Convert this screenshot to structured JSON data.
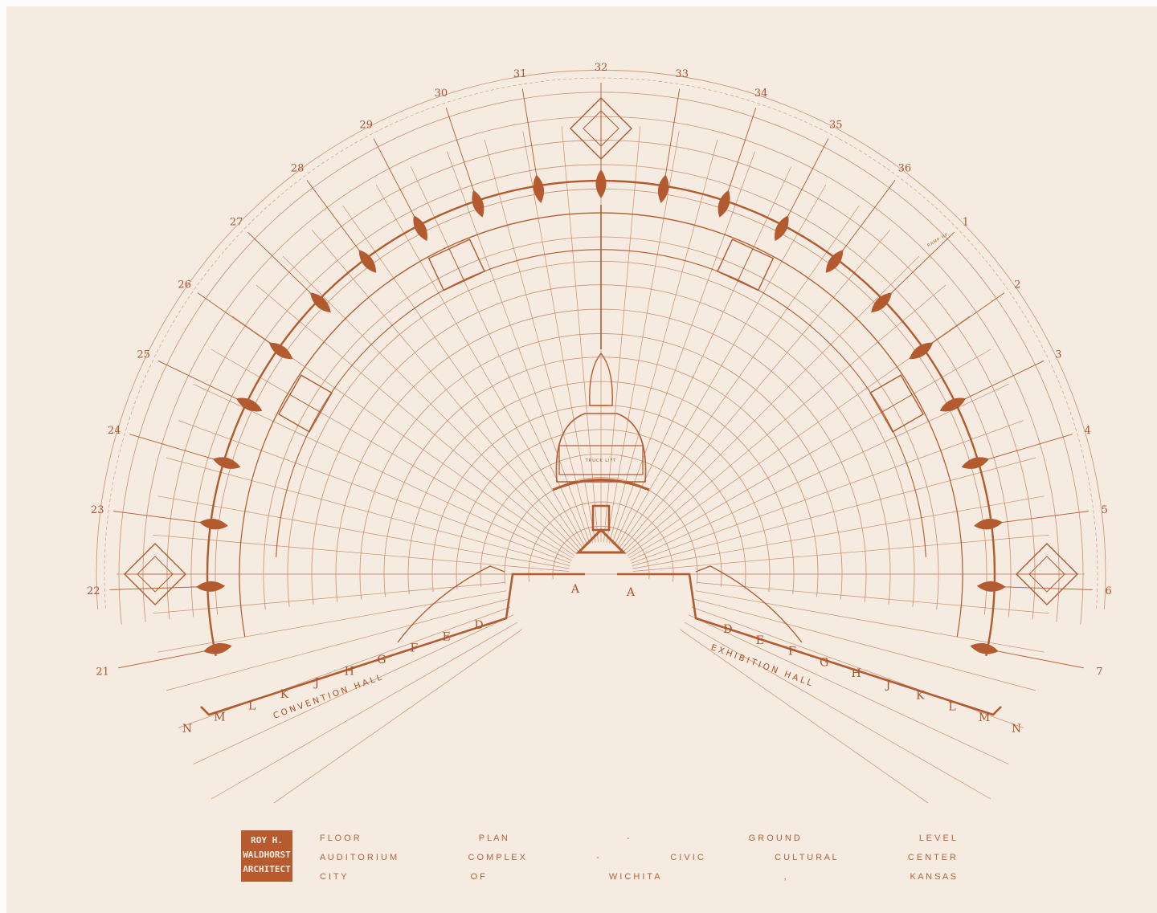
{
  "colors": {
    "paper": "#f6ebe0",
    "ink": "#b35a2e",
    "fine_line": "#c98e6e"
  },
  "drawing": {
    "grid_lines_top": [
      "21",
      "22",
      "23",
      "24",
      "25",
      "26",
      "27",
      "28",
      "29",
      "30",
      "31",
      "32",
      "33",
      "34",
      "35",
      "36",
      "1",
      "2",
      "3",
      "4",
      "5",
      "6",
      "7"
    ],
    "bays_left": [
      "D",
      "E",
      "F",
      "G",
      "H",
      "J",
      "K",
      "L",
      "M",
      "N"
    ],
    "bays_right": [
      "D",
      "E",
      "F",
      "G",
      "H",
      "J",
      "K",
      "L",
      "M",
      "N"
    ],
    "center_bays": [
      "A",
      "A"
    ],
    "convention_hall": "CONVENTION HALL",
    "exhibition_hall": "EXHIBITION HALL",
    "truck_lift": "TRUCK LIFT",
    "ramp_up": "RAMP UP"
  },
  "title_block": {
    "logo_lines": [
      "ROY H.",
      "WALDHORST",
      "ARCHITECT"
    ],
    "line1": [
      "F L O O R",
      "P L A N",
      "-",
      "G R O U N D",
      "L E V E L"
    ],
    "line2": [
      "A U D I T O R I U M",
      "C O M P L E X",
      "-",
      "C I V I C",
      "C U L T U R A L",
      "C E N T E R"
    ],
    "line3": [
      "C I T Y",
      "O F",
      "W I C H I T A",
      ",",
      "K A N S A S"
    ]
  }
}
